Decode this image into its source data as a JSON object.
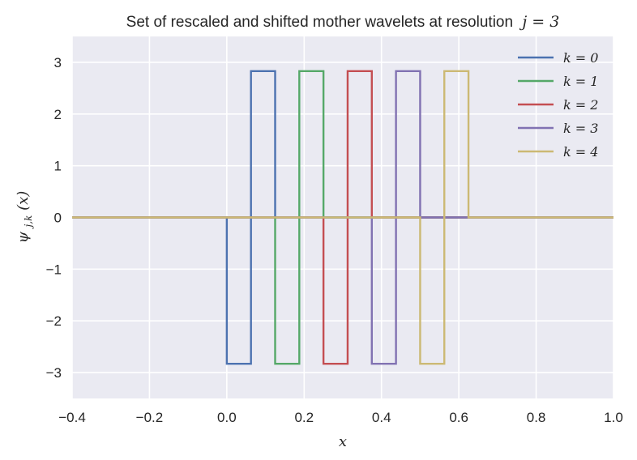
{
  "chart_data": {
    "type": "line",
    "title": "Set of rescaled and shifted mother wavelets at resolution",
    "title_math": "j = 3",
    "xlabel": "x",
    "ylabel": "ψj,k(x)",
    "ylabel_base": "ψ",
    "ylabel_sub": "j,k",
    "ylabel_arg": "(x)",
    "xlim": [
      -0.4,
      1.0
    ],
    "ylim": [
      -3.5,
      3.5
    ],
    "xticks": [
      -0.4,
      -0.2,
      0.0,
      0.2,
      0.4,
      0.6,
      0.8,
      1.0
    ],
    "xtick_labels": [
      "−0.4",
      "−0.2",
      "0.0",
      "0.2",
      "0.4",
      "0.6",
      "0.8",
      "1.0"
    ],
    "yticks": [
      3,
      2,
      1,
      0,
      -1,
      -2,
      -3
    ],
    "ytick_labels": [
      "3",
      "2",
      "1",
      "0",
      "−1",
      "−2",
      "−3"
    ],
    "grid": true,
    "background": "#eaeaf2",
    "grid_color": "#ffffff",
    "legend_position": "top-right",
    "series": [
      {
        "name": "k = 0",
        "color": "#4c72b0",
        "x": [
          -0.4,
          0.0,
          0.0,
          0.0625,
          0.0625,
          0.125,
          0.125,
          1.0
        ],
        "y": [
          0,
          0,
          -2.83,
          -2.83,
          2.83,
          2.83,
          0,
          0
        ]
      },
      {
        "name": "k = 1",
        "color": "#55a868",
        "x": [
          -0.4,
          0.125,
          0.125,
          0.1875,
          0.1875,
          0.25,
          0.25,
          1.0
        ],
        "y": [
          0,
          0,
          -2.83,
          -2.83,
          2.83,
          2.83,
          0,
          0
        ]
      },
      {
        "name": "k = 2",
        "color": "#c44e52",
        "x": [
          -0.4,
          0.25,
          0.25,
          0.3125,
          0.3125,
          0.375,
          0.375,
          1.0
        ],
        "y": [
          0,
          0,
          -2.83,
          -2.83,
          2.83,
          2.83,
          0,
          0
        ]
      },
      {
        "name": "k = 3",
        "color": "#8172b2",
        "x": [
          -0.4,
          0.375,
          0.375,
          0.4375,
          0.4375,
          0.5,
          0.5,
          1.0
        ],
        "y": [
          0,
          0,
          -2.83,
          -2.83,
          2.83,
          2.83,
          0,
          0
        ]
      },
      {
        "name": "k = 4",
        "color": "#ccb974",
        "x": [
          -0.4,
          0.5,
          0.5,
          0.5625,
          0.5625,
          0.625,
          0.625,
          1.0
        ],
        "y": [
          0,
          0,
          -2.83,
          -2.83,
          2.83,
          2.83,
          0,
          0
        ]
      }
    ]
  }
}
